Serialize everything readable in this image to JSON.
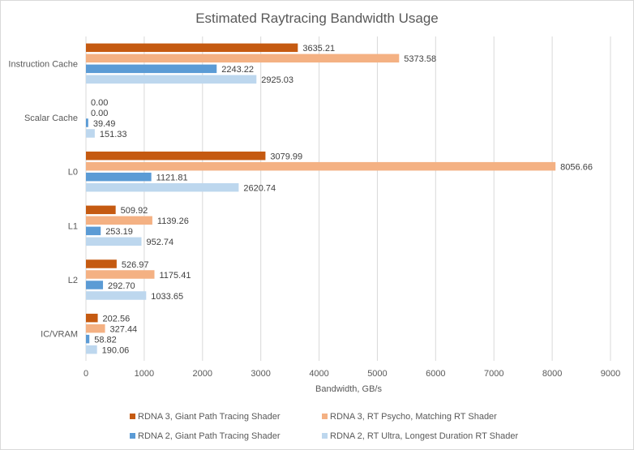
{
  "chart_data": {
    "type": "bar",
    "orientation": "horizontal",
    "title": "Estimated Raytracing Bandwidth Usage",
    "xlabel": "Bandwidth, GB/s",
    "ylabel": "",
    "xlim": [
      0,
      9000
    ],
    "xticks": [
      0,
      1000,
      2000,
      3000,
      4000,
      5000,
      6000,
      7000,
      8000,
      9000
    ],
    "grid": true,
    "legend_position": "bottom",
    "categories": [
      "Instruction Cache",
      "Scalar Cache",
      "L0",
      "L1",
      "L2",
      "IC/VRAM"
    ],
    "series": [
      {
        "name": "RDNA 3, Giant Path Tracing Shader",
        "color": "#c55a11",
        "values": [
          3635.21,
          0.0,
          3079.99,
          509.92,
          526.97,
          202.56
        ],
        "labels": [
          "3635.21",
          "0.00",
          "3079.99",
          "509.92",
          "526.97",
          "202.56"
        ]
      },
      {
        "name": "RDNA 3, RT Psycho, Matching RT Shader",
        "color": "#f4b183",
        "values": [
          5373.58,
          0.0,
          8056.66,
          1139.26,
          1175.41,
          327.44
        ],
        "labels": [
          "5373.58",
          "0.00",
          "8056.66",
          "1139.26",
          "1175.41",
          "327.44"
        ]
      },
      {
        "name": "RDNA 2, Giant Path Tracing Shader",
        "color": "#5b9bd5",
        "values": [
          2243.22,
          39.49,
          1121.81,
          253.19,
          292.7,
          58.82
        ],
        "labels": [
          "2243.22",
          "39.49",
          "1121.81",
          "253.19",
          "292.70",
          "58.82"
        ]
      },
      {
        "name": "RDNA 2, RT Ultra, Longest Duration RT Shader",
        "color": "#bdd7ee",
        "values": [
          2925.03,
          151.33,
          2620.74,
          952.74,
          1033.65,
          190.06
        ],
        "labels": [
          "2925.03",
          "151.33",
          "2620.74",
          "952.74",
          "1033.65",
          "190.06"
        ]
      }
    ]
  }
}
